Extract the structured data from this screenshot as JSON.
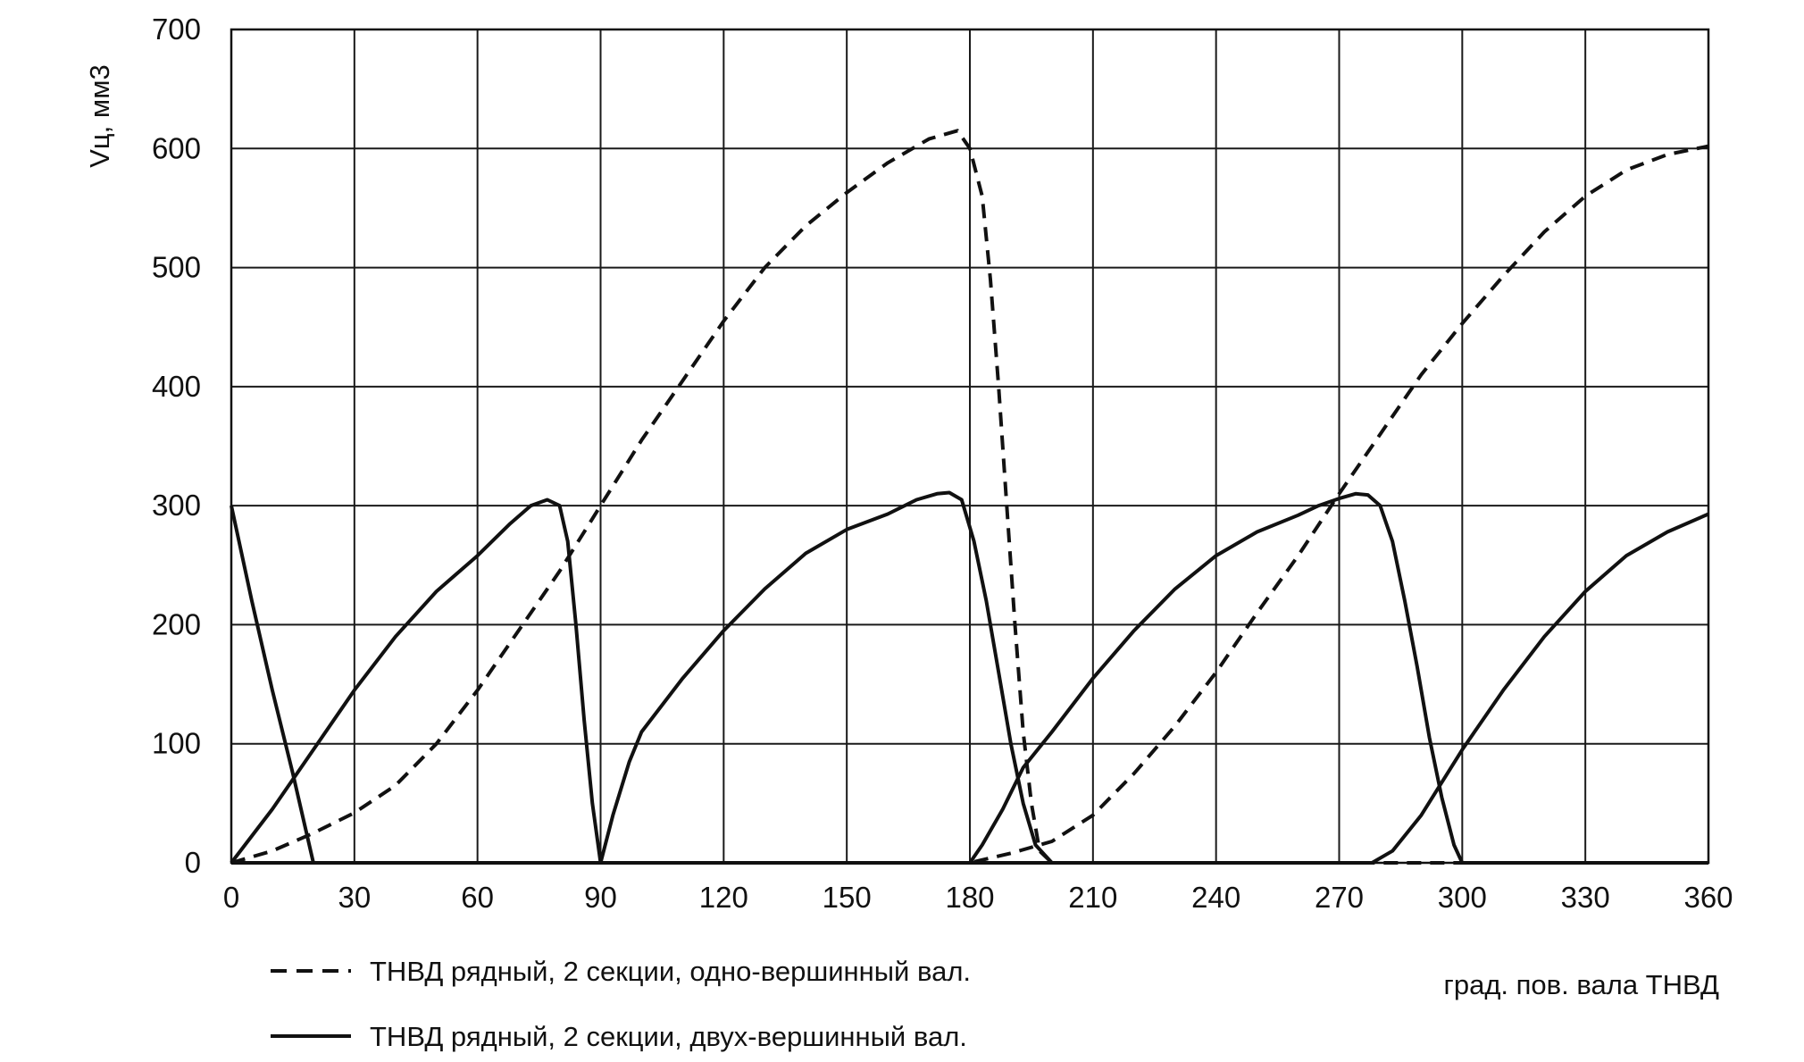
{
  "chart_data": {
    "type": "line",
    "title": "",
    "xlabel": "град. пов. вала ТНВД",
    "ylabel": "Vц, мм3",
    "xlim": [
      0,
      360
    ],
    "ylim": [
      0,
      700
    ],
    "x_ticks": [
      "0",
      "30",
      "60",
      "90",
      "120",
      "150",
      "180",
      "210",
      "240",
      "270",
      "300",
      "330",
      "360"
    ],
    "y_ticks": [
      "0",
      "100",
      "200",
      "300",
      "400",
      "500",
      "600",
      "700"
    ],
    "grid": true,
    "legend_position": "bottom-left",
    "series": [
      {
        "name": "ТНВД рядный, 2 секции, одно-вершинный вал.",
        "style": "dashed",
        "color": "#111111",
        "points": [
          [
            0,
            0
          ],
          [
            10,
            10
          ],
          [
            20,
            25
          ],
          [
            30,
            42
          ],
          [
            40,
            65
          ],
          [
            50,
            100
          ],
          [
            60,
            145
          ],
          [
            70,
            195
          ],
          [
            80,
            245
          ],
          [
            90,
            300
          ],
          [
            100,
            355
          ],
          [
            110,
            405
          ],
          [
            120,
            455
          ],
          [
            130,
            500
          ],
          [
            140,
            535
          ],
          [
            150,
            563
          ],
          [
            160,
            588
          ],
          [
            170,
            608
          ],
          [
            177,
            615
          ],
          [
            180,
            600
          ],
          [
            183,
            560
          ],
          [
            185,
            490
          ],
          [
            187,
            400
          ],
          [
            189,
            300
          ],
          [
            191,
            200
          ],
          [
            193,
            110
          ],
          [
            195,
            50
          ],
          [
            197,
            10
          ],
          [
            200,
            0
          ],
          [
            210,
            0
          ],
          [
            220,
            0
          ],
          [
            230,
            0
          ],
          [
            240,
            0
          ],
          [
            250,
            0
          ],
          [
            260,
            0
          ],
          [
            270,
            0
          ],
          [
            280,
            0
          ],
          [
            290,
            0
          ],
          [
            300,
            0
          ],
          [
            310,
            0
          ],
          [
            320,
            0
          ],
          [
            330,
            0
          ],
          [
            340,
            0
          ],
          [
            350,
            0
          ],
          [
            360,
            0
          ]
        ]
      },
      {
        "name": "",
        "style": "dashed",
        "color": "#111111",
        "points": [
          [
            0,
            0
          ],
          [
            30,
            0
          ],
          [
            60,
            0
          ],
          [
            90,
            0
          ],
          [
            120,
            0
          ],
          [
            150,
            0
          ],
          [
            175,
            0
          ],
          [
            180,
            0
          ],
          [
            190,
            8
          ],
          [
            200,
            18
          ],
          [
            210,
            40
          ],
          [
            220,
            75
          ],
          [
            230,
            115
          ],
          [
            240,
            160
          ],
          [
            250,
            210
          ],
          [
            260,
            258
          ],
          [
            270,
            310
          ],
          [
            280,
            360
          ],
          [
            290,
            410
          ],
          [
            300,
            453
          ],
          [
            310,
            493
          ],
          [
            320,
            530
          ],
          [
            330,
            560
          ],
          [
            340,
            582
          ],
          [
            350,
            595
          ],
          [
            360,
            602
          ]
        ]
      },
      {
        "name": "ТНВД рядный, 2 секции, двух-вершинный вал.",
        "style": "solid",
        "color": "#111111",
        "points": [
          [
            0,
            0
          ],
          [
            10,
            45
          ],
          [
            20,
            95
          ],
          [
            30,
            145
          ],
          [
            40,
            190
          ],
          [
            50,
            228
          ],
          [
            60,
            258
          ],
          [
            68,
            285
          ],
          [
            73,
            300
          ],
          [
            77,
            305
          ],
          [
            80,
            300
          ],
          [
            82,
            270
          ],
          [
            84,
            200
          ],
          [
            86,
            120
          ],
          [
            88,
            50
          ],
          [
            90,
            0
          ],
          [
            93,
            40
          ],
          [
            97,
            85
          ],
          [
            100,
            110
          ],
          [
            110,
            155
          ],
          [
            120,
            195
          ],
          [
            130,
            230
          ],
          [
            140,
            260
          ],
          [
            150,
            280
          ],
          [
            160,
            293
          ],
          [
            167,
            305
          ],
          [
            172,
            310
          ],
          [
            175,
            311
          ],
          [
            178,
            305
          ],
          [
            181,
            270
          ],
          [
            184,
            220
          ],
          [
            187,
            160
          ],
          [
            190,
            100
          ],
          [
            193,
            50
          ],
          [
            196,
            15
          ],
          [
            200,
            0
          ]
        ]
      },
      {
        "name": "",
        "style": "solid",
        "color": "#111111",
        "points": [
          [
            0,
            300
          ],
          [
            5,
            220
          ],
          [
            10,
            145
          ],
          [
            15,
            75
          ],
          [
            18,
            30
          ],
          [
            20,
            0
          ],
          [
            30,
            0
          ],
          [
            60,
            0
          ],
          [
            90,
            0
          ],
          [
            120,
            0
          ],
          [
            150,
            0
          ],
          [
            180,
            0
          ],
          [
            183,
            15
          ],
          [
            188,
            45
          ],
          [
            193,
            80
          ],
          [
            200,
            110
          ],
          [
            210,
            155
          ],
          [
            220,
            195
          ],
          [
            230,
            230
          ],
          [
            240,
            258
          ],
          [
            250,
            278
          ],
          [
            260,
            292
          ],
          [
            265,
            300
          ],
          [
            270,
            306
          ],
          [
            274,
            310
          ],
          [
            277,
            309
          ],
          [
            280,
            300
          ],
          [
            283,
            270
          ],
          [
            286,
            220
          ],
          [
            289,
            165
          ],
          [
            292,
            105
          ],
          [
            295,
            55
          ],
          [
            298,
            15
          ],
          [
            300,
            0
          ],
          [
            310,
            0
          ],
          [
            340,
            0
          ],
          [
            360,
            0
          ]
        ]
      },
      {
        "name": "",
        "style": "solid",
        "color": "#111111",
        "points": [
          [
            0,
            0
          ],
          [
            30,
            0
          ],
          [
            60,
            0
          ],
          [
            90,
            0
          ],
          [
            120,
            0
          ],
          [
            150,
            0
          ],
          [
            180,
            0
          ],
          [
            210,
            0
          ],
          [
            240,
            0
          ],
          [
            270,
            0
          ],
          [
            278,
            0
          ],
          [
            283,
            10
          ],
          [
            290,
            40
          ],
          [
            300,
            95
          ],
          [
            310,
            145
          ],
          [
            320,
            190
          ],
          [
            330,
            228
          ],
          [
            340,
            258
          ],
          [
            350,
            278
          ],
          [
            360,
            293
          ]
        ]
      }
    ]
  }
}
